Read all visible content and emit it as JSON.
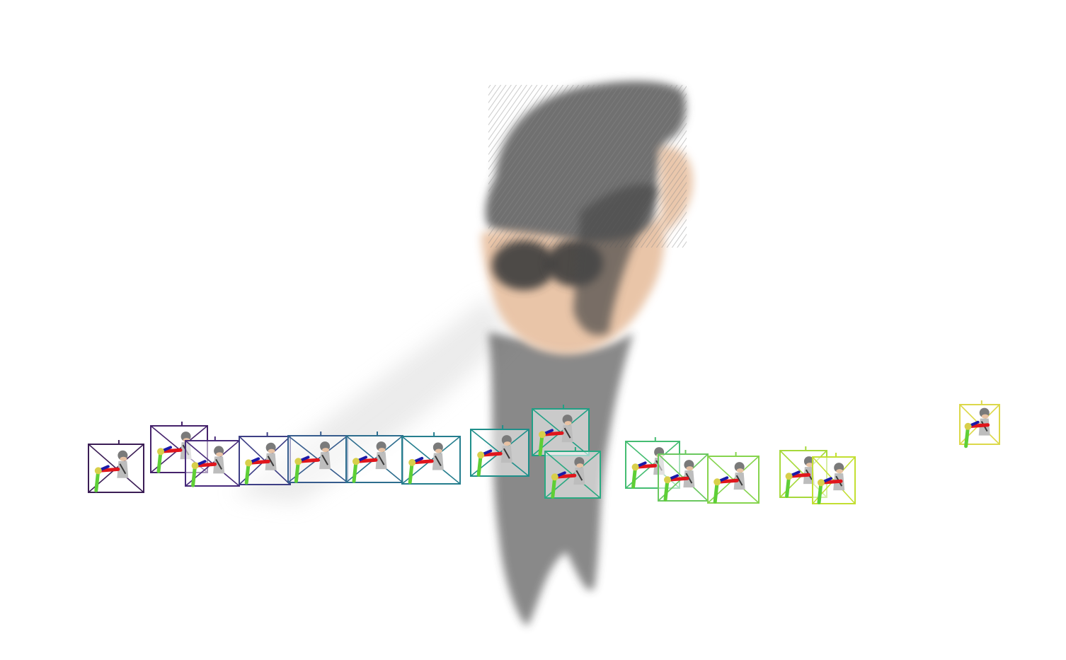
{
  "scene": {
    "background": "#ffffff",
    "cloud_colors": {
      "hair": "#6e6e6e",
      "hair_dark": "#4a4a4a",
      "skin": "#e8c2a4",
      "glasses": "#3d3d3d",
      "mist": "#d6d6d6",
      "body": "#2e2e2e"
    },
    "axis_colors": {
      "x": "#e0161c",
      "y": "#5ecf36",
      "z": "#1a1aa8",
      "origin": "#d8cf4a"
    },
    "cameras": [
      {
        "frame": 0,
        "color": "#3b1d55",
        "thumb_icon": "character-thumbnail-icon"
      },
      {
        "frame": 1,
        "color": "#45226b",
        "thumb_icon": "character-thumbnail-icon"
      },
      {
        "frame": 2,
        "color": "#472a7a",
        "thumb_icon": "character-thumbnail-icon"
      },
      {
        "frame": 3,
        "color": "#3e3f85",
        "thumb_icon": "character-thumbnail-icon"
      },
      {
        "frame": 4,
        "color": "#365c8d",
        "thumb_icon": "character-thumbnail-icon"
      },
      {
        "frame": 5,
        "color": "#2d6d8e",
        "thumb_icon": "character-thumbnail-icon"
      },
      {
        "frame": 6,
        "color": "#257e8e",
        "thumb_icon": "character-thumbnail-icon"
      },
      {
        "frame": 7,
        "color": "#1f8f8a",
        "thumb_icon": "character-thumbnail-icon"
      },
      {
        "frame": 8,
        "color": "#21a085",
        "thumb_icon": "character-thumbnail-icon"
      },
      {
        "frame": 9,
        "color": "#2aa981",
        "thumb_icon": "character-thumbnail-icon"
      },
      {
        "frame": 10,
        "color": "#45bd72",
        "thumb_icon": "character-thumbnail-icon"
      },
      {
        "frame": 11,
        "color": "#6ac85f",
        "thumb_icon": "character-thumbnail-icon"
      },
      {
        "frame": 12,
        "color": "#86d44e",
        "thumb_icon": "character-thumbnail-icon"
      },
      {
        "frame": 13,
        "color": "#a6d93b",
        "thumb_icon": "character-thumbnail-icon"
      },
      {
        "frame": 14,
        "color": "#c3df32",
        "thumb_icon": "character-thumbnail-icon"
      },
      {
        "frame": 15,
        "color": "#dcd84a",
        "thumb_icon": "character-thumbnail-icon"
      }
    ]
  }
}
